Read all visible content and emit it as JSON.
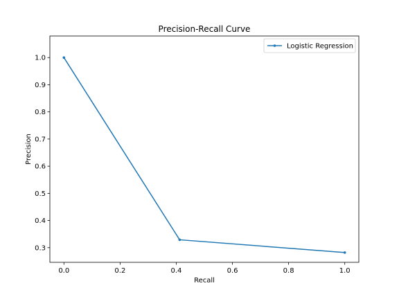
{
  "chart_data": {
    "type": "line",
    "title": "Precision-Recall Curve",
    "xlabel": "Recall",
    "ylabel": "Precision",
    "xlim": [
      -0.05,
      1.05
    ],
    "ylim": [
      0.246,
      1.0795
    ],
    "xticks": [
      0.0,
      0.2,
      0.4,
      0.6,
      0.8,
      1.0
    ],
    "xtick_labels": [
      "0.0",
      "0.2",
      "0.4",
      "0.6",
      "0.8",
      "1.0"
    ],
    "yticks": [
      0.3,
      0.4,
      0.5,
      0.6,
      0.7,
      0.8,
      0.9,
      1.0
    ],
    "ytick_labels": [
      "0.3",
      "0.4",
      "0.5",
      "0.6",
      "0.7",
      "0.8",
      "0.9",
      "1.0"
    ],
    "grid": false,
    "legend_position": "top-right",
    "series": [
      {
        "name": "Logistic Regression",
        "color": "#1f77b4",
        "marker": "point",
        "points": [
          {
            "x": 0.0,
            "y": 1.0
          },
          {
            "x": 0.412,
            "y": 0.329
          },
          {
            "x": 1.0,
            "y": 0.282
          }
        ]
      }
    ]
  }
}
